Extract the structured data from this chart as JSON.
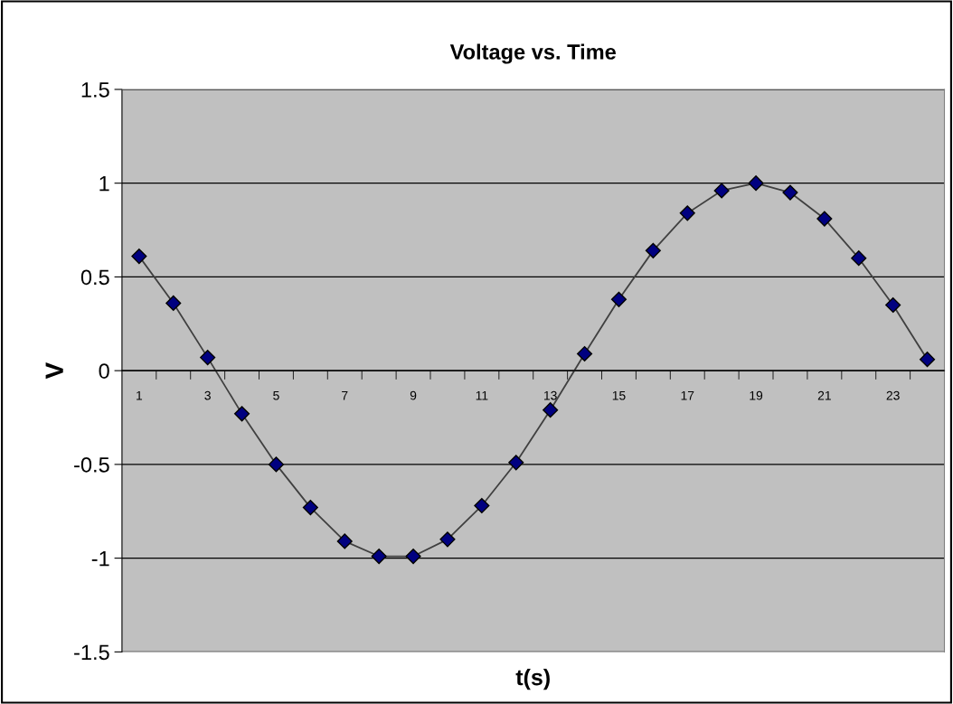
{
  "chart_data": {
    "type": "line",
    "title": "Voltage vs. Time",
    "xlabel": "t(s)",
    "ylabel": "V",
    "categories": [
      "1",
      null,
      "3",
      null,
      "5",
      null,
      "7",
      null,
      "9",
      null,
      "11",
      null,
      "13",
      null,
      "15",
      null,
      "17",
      null,
      "19",
      null,
      "21",
      null,
      "23",
      null
    ],
    "series": [
      {
        "color": "#000080",
        "values": [
          0.61,
          0.36,
          0.07,
          -0.23,
          -0.5,
          -0.73,
          -0.91,
          -0.99,
          -0.99,
          -0.9,
          -0.72,
          -0.49,
          -0.21,
          0.09,
          0.38,
          0.64,
          0.84,
          0.96,
          1.0,
          0.95,
          0.81,
          0.6,
          0.35,
          0.06
        ]
      }
    ],
    "ylim": [
      -1.5,
      1.5
    ],
    "yticks": [
      -1.5,
      -1,
      -0.5,
      0,
      0.5,
      1,
      1.5
    ],
    "grid": "y",
    "legend": false,
    "marker": "diamond",
    "line_style": "solid"
  }
}
